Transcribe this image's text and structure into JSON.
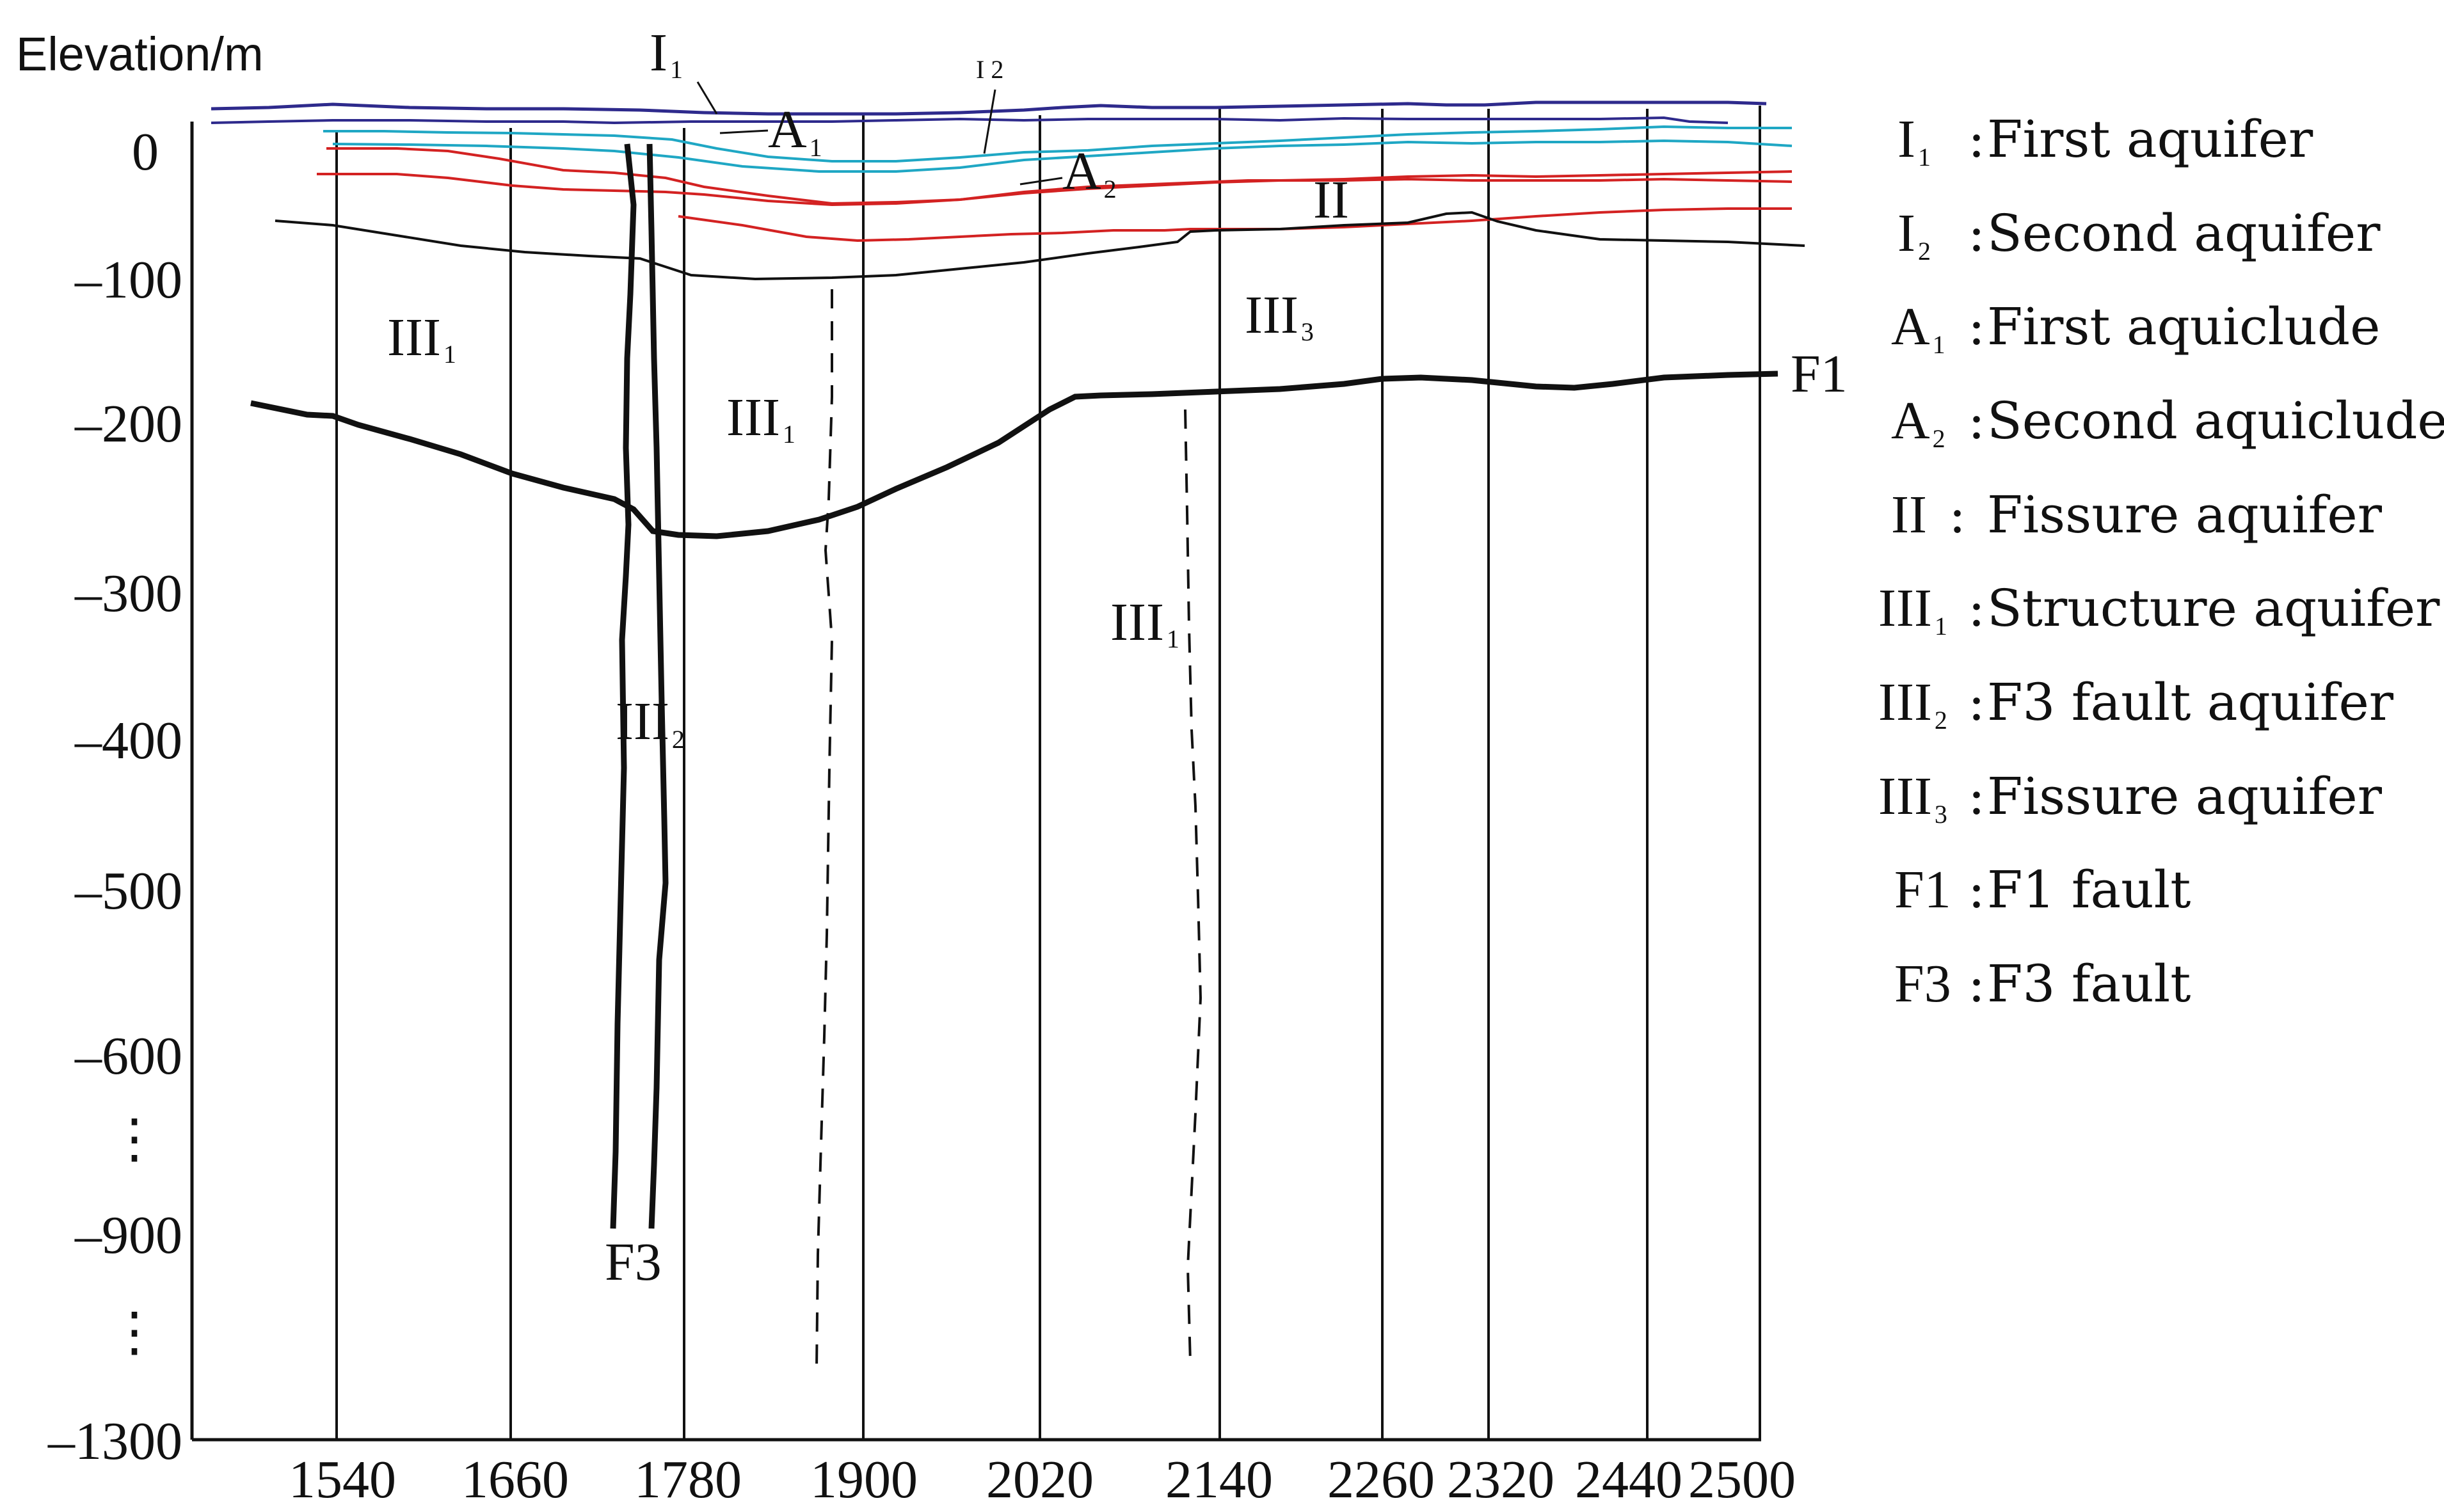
{
  "diagram": {
    "title": "Elevation/m",
    "y_axis_labels": [
      "0",
      "–100",
      "–200",
      "–300",
      "–400",
      "–500",
      "–600",
      "⋮",
      "–900",
      "⋮",
      "–1300"
    ],
    "x_axis_labels": [
      "1540",
      "1660",
      "1780",
      "1900",
      "2020",
      "2140",
      "2260",
      "2320",
      "2440",
      "2500"
    ],
    "zones": [
      {
        "id": "I1",
        "main": "I",
        "sub": "1"
      },
      {
        "id": "I2",
        "main": "I 2",
        "sub": ""
      },
      {
        "id": "A1",
        "main": "A",
        "sub": "1"
      },
      {
        "id": "A2",
        "main": "A",
        "sub": "2"
      },
      {
        "id": "II",
        "main": "II",
        "sub": ""
      },
      {
        "id": "III1-left",
        "main": "III",
        "sub": "1"
      },
      {
        "id": "III1-mid",
        "main": "III",
        "sub": "1"
      },
      {
        "id": "III1-right",
        "main": "III",
        "sub": "1"
      },
      {
        "id": "III2",
        "main": "III",
        "sub": "2"
      },
      {
        "id": "III3",
        "main": "III",
        "sub": "3"
      },
      {
        "id": "F1",
        "main": "F1",
        "sub": ""
      },
      {
        "id": "F3",
        "main": "F3",
        "sub": ""
      }
    ],
    "legend": [
      {
        "sym": "I",
        "sub": "1",
        "sep": ":",
        "text": "First aquifer"
      },
      {
        "sym": "I",
        "sub": "2",
        "sep": ":",
        "text": "Second aquifer"
      },
      {
        "sym": "A",
        "sub": "1",
        "sep": ":",
        "text": "First aquiclude"
      },
      {
        "sym": "A",
        "sub": "2",
        "sep": ":",
        "text": "Second aquiclude"
      },
      {
        "sym": "II",
        "sub": "",
        "sep": " :",
        "text": "Fissure  aquifer"
      },
      {
        "sym": "III",
        "sub": "1",
        "sep": ":",
        "text": "Structure aquifer"
      },
      {
        "sym": "III",
        "sub": "2",
        "sep": ":",
        "text": "F3 fault aquifer"
      },
      {
        "sym": "III",
        "sub": "3",
        "sep": ":",
        "text": "Fissure aquifer"
      },
      {
        "sym": "F1",
        "sub": "",
        "sep": ":",
        "text": "F1 fault"
      },
      {
        "sym": "F3",
        "sub": "",
        "sep": ":",
        "text": "F3 fault"
      }
    ],
    "colors": {
      "surface": "#2e2a8c",
      "first_aquifer_base": "#1fa7c4",
      "aquiclude_boundary": "#d32222",
      "lines": "#111111"
    }
  }
}
